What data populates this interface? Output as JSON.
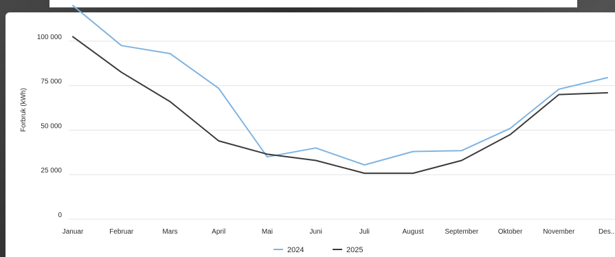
{
  "chart_data": {
    "type": "line",
    "title": "",
    "xlabel": "",
    "ylabel": "Forbruk (kWh)",
    "categories": [
      "Januar",
      "Februar",
      "Mars",
      "April",
      "Mai",
      "Juni",
      "Juli",
      "August",
      "September",
      "Oktober",
      "November",
      "Des..."
    ],
    "ylim": [
      0,
      120000
    ],
    "yticks": [
      0,
      25000,
      50000,
      75000,
      100000
    ],
    "ytick_labels": [
      "0",
      "25 000",
      "50 000",
      "75 000",
      "100 000"
    ],
    "grid": true,
    "legend": "bottom",
    "series": [
      {
        "name": "2024",
        "color": "#80b4e0",
        "values": [
          120000,
          97500,
          93000,
          73500,
          35000,
          40000,
          30500,
          38000,
          38500,
          51000,
          73000,
          79500
        ]
      },
      {
        "name": "2025",
        "color": "#3a3a3a",
        "values": [
          102500,
          82500,
          66000,
          44000,
          36500,
          33000,
          25800,
          25800,
          33000,
          47500,
          70000,
          71000
        ]
      }
    ]
  }
}
